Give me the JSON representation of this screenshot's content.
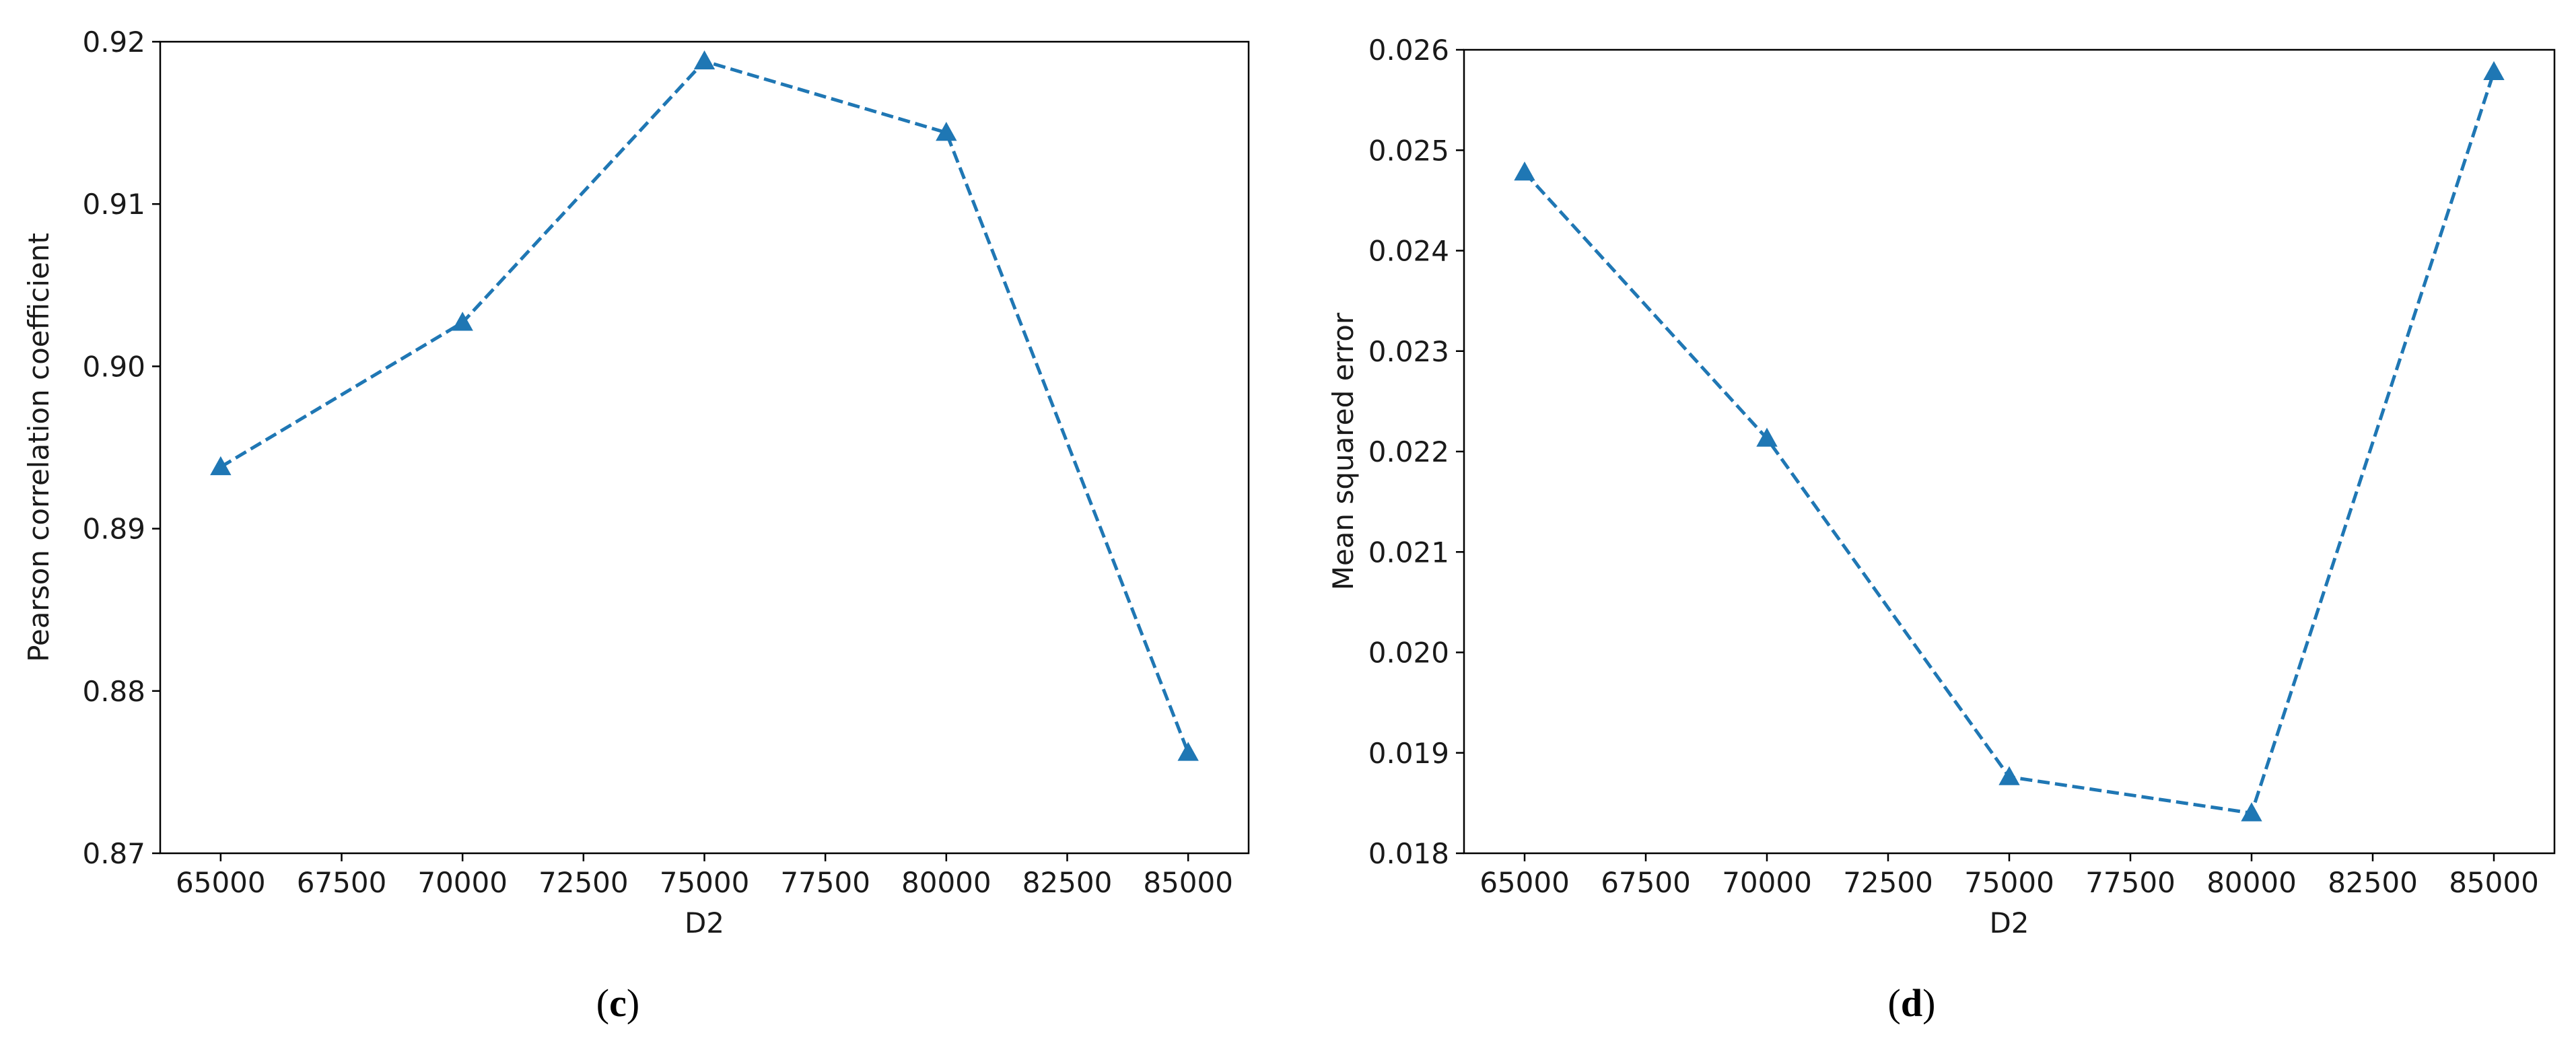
{
  "chart_data": [
    {
      "type": "line",
      "panel_label": "c",
      "xlabel": "D2",
      "ylabel": "Pearson correlation coefficient",
      "xlim": [
        63750,
        86250
      ],
      "ylim": [
        0.87,
        0.92
      ],
      "x_ticks": [
        65000,
        67500,
        70000,
        72500,
        75000,
        77500,
        80000,
        82500,
        85000
      ],
      "y_ticks": [
        "0.87",
        "0.88",
        "0.89",
        "0.90",
        "0.91",
        "0.92"
      ],
      "line_style": "dashed",
      "marker": "triangle",
      "color": "#1f77b4",
      "grid": false,
      "series": [
        {
          "x": [
            65000,
            70000,
            75000,
            80000,
            85000
          ],
          "values": [
            0.8938,
            0.9027,
            0.9188,
            0.9144,
            0.8762
          ]
        }
      ]
    },
    {
      "type": "line",
      "panel_label": "d",
      "xlabel": "D2",
      "ylabel": "Mean squared error",
      "xlim": [
        63750,
        86250
      ],
      "ylim": [
        0.018,
        0.026
      ],
      "x_ticks": [
        65000,
        67500,
        70000,
        72500,
        75000,
        77500,
        80000,
        82500,
        85000
      ],
      "y_ticks": [
        "0.018",
        "0.019",
        "0.020",
        "0.021",
        "0.022",
        "0.023",
        "0.024",
        "0.025",
        "0.026"
      ],
      "line_style": "dashed",
      "marker": "triangle",
      "color": "#1f77b4",
      "grid": false,
      "series": [
        {
          "x": [
            65000,
            70000,
            75000,
            80000,
            85000
          ],
          "values": [
            0.02478,
            0.02213,
            0.01876,
            0.0184,
            0.02578
          ]
        }
      ]
    }
  ]
}
